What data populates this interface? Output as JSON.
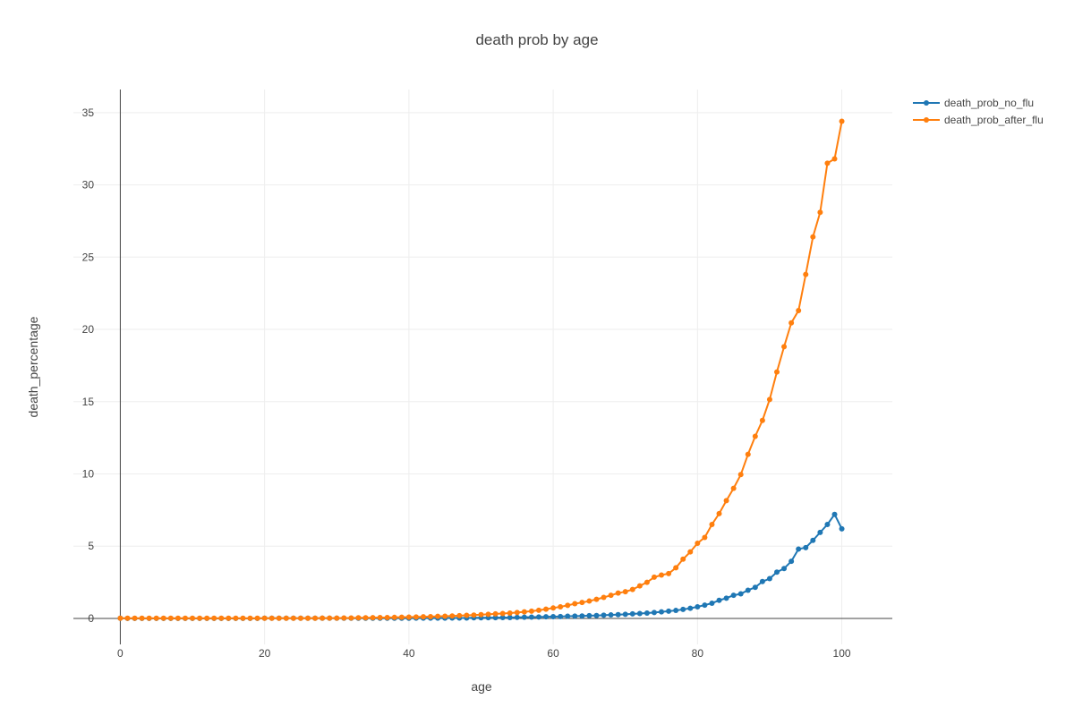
{
  "chart_data": {
    "type": "line",
    "title": "death prob by age",
    "xlabel": "age",
    "ylabel": "death_percentage",
    "xlim": [
      -6.5,
      107
    ],
    "ylim": [
      -1.8,
      36.6
    ],
    "xticks": [
      0,
      20,
      40,
      60,
      80,
      100
    ],
    "yticks": [
      0,
      5,
      10,
      15,
      20,
      25,
      30,
      35
    ],
    "grid": true,
    "legend_position": "top-right",
    "x": [
      0,
      1,
      2,
      3,
      4,
      5,
      6,
      7,
      8,
      9,
      10,
      11,
      12,
      13,
      14,
      15,
      16,
      17,
      18,
      19,
      20,
      21,
      22,
      23,
      24,
      25,
      26,
      27,
      28,
      29,
      30,
      31,
      32,
      33,
      34,
      35,
      36,
      37,
      38,
      39,
      40,
      41,
      42,
      43,
      44,
      45,
      46,
      47,
      48,
      49,
      50,
      51,
      52,
      53,
      54,
      55,
      56,
      57,
      58,
      59,
      60,
      61,
      62,
      63,
      64,
      65,
      66,
      67,
      68,
      69,
      70,
      71,
      72,
      73,
      74,
      75,
      76,
      77,
      78,
      79,
      80,
      81,
      82,
      83,
      84,
      85,
      86,
      87,
      88,
      89,
      90,
      91,
      92,
      93,
      94,
      95,
      96,
      97,
      98,
      99,
      100
    ],
    "series": [
      {
        "name": "death_prob_no_flu",
        "color": "#1f77b4",
        "values": [
          0.01,
          0,
          0,
          0,
          0,
          0,
          0,
          0,
          0,
          0,
          0,
          0,
          0,
          0,
          0,
          0,
          0,
          0,
          0,
          0,
          0.01,
          0.01,
          0.01,
          0.01,
          0.01,
          0.01,
          0.01,
          0.01,
          0.01,
          0.01,
          0.01,
          0.01,
          0.01,
          0.01,
          0.01,
          0.01,
          0.01,
          0.01,
          0.01,
          0.01,
          0.01,
          0.02,
          0.02,
          0.02,
          0.02,
          0.02,
          0.03,
          0.03,
          0.03,
          0.04,
          0.04,
          0.05,
          0.05,
          0.06,
          0.06,
          0.07,
          0.08,
          0.09,
          0.1,
          0.11,
          0.12,
          0.13,
          0.15,
          0.16,
          0.17,
          0.19,
          0.2,
          0.22,
          0.24,
          0.26,
          0.28,
          0.31,
          0.34,
          0.37,
          0.41,
          0.45,
          0.5,
          0.55,
          0.62,
          0.7,
          0.8,
          0.92,
          1.05,
          1.25,
          1.4,
          1.6,
          1.7,
          1.95,
          2.15,
          2.55,
          2.75,
          3.2,
          3.45,
          3.95,
          4.8,
          4.9,
          5.4,
          5.95,
          6.5,
          7.2,
          6.2
        ]
      },
      {
        "name": "death_prob_after_flu",
        "color": "#ff7f0e",
        "values": [
          0.01,
          0.01,
          0.01,
          0.01,
          0.01,
          0.01,
          0.01,
          0.01,
          0.01,
          0.01,
          0.01,
          0.01,
          0.01,
          0.01,
          0.01,
          0.01,
          0.01,
          0.01,
          0.01,
          0.01,
          0.01,
          0.01,
          0.01,
          0.01,
          0.01,
          0.01,
          0.01,
          0.01,
          0.02,
          0.02,
          0.02,
          0.03,
          0.03,
          0.04,
          0.04,
          0.05,
          0.06,
          0.06,
          0.07,
          0.08,
          0.09,
          0.1,
          0.11,
          0.12,
          0.14,
          0.15,
          0.17,
          0.19,
          0.21,
          0.23,
          0.26,
          0.28,
          0.31,
          0.34,
          0.37,
          0.41,
          0.45,
          0.5,
          0.56,
          0.64,
          0.72,
          0.8,
          0.9,
          1.02,
          1.1,
          1.2,
          1.32,
          1.45,
          1.6,
          1.75,
          1.85,
          2.0,
          2.25,
          2.5,
          2.85,
          3.0,
          3.1,
          3.5,
          4.1,
          4.6,
          5.2,
          5.6,
          6.5,
          7.25,
          8.15,
          9.0,
          9.95,
          11.35,
          12.6,
          13.7,
          15.15,
          17.05,
          18.8,
          20.45,
          21.3,
          23.8,
          26.4,
          28.1,
          31.5,
          31.8,
          34.4
        ]
      }
    ]
  }
}
